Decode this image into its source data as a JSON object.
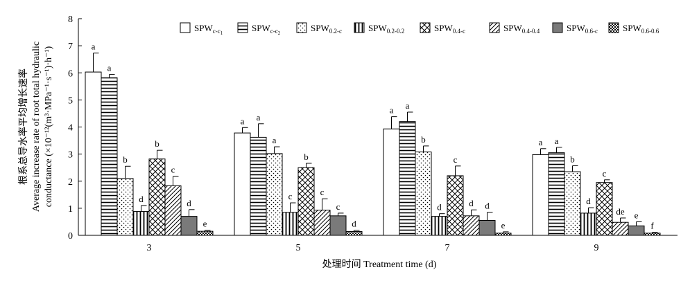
{
  "chart_data": {
    "type": "bar",
    "categories": [
      "3",
      "5",
      "7",
      "9"
    ],
    "xlabel": "处理时间 Treatment time (d)",
    "ylabel_lines": [
      "根系总导水率平均增长速率",
      "Average increase rate of root total hydraulic",
      "conductance (×10⁻¹²(m³·MPa⁻¹·s⁻¹)·h⁻¹)"
    ],
    "ylim": [
      0,
      8
    ],
    "yticks": [
      0,
      1,
      2,
      3,
      4,
      5,
      6,
      7,
      8
    ],
    "legend_position": "top-right",
    "series": [
      {
        "name": "SPW",
        "sub": "c-c",
        "subsub": "1",
        "pattern": "white",
        "values": [
          6.03,
          3.78,
          3.93,
          2.98
        ],
        "errors": [
          0.7,
          0.2,
          0.45,
          0.22
        ],
        "letters": [
          "a",
          "a",
          "a",
          "a"
        ]
      },
      {
        "name": "SPW",
        "sub": "c-c",
        "subsub": "2",
        "pattern": "hlines",
        "values": [
          5.82,
          3.62,
          4.2,
          3.05
        ],
        "errors": [
          0.12,
          0.5,
          0.35,
          0.2
        ],
        "letters": [
          "a",
          "a",
          "a",
          "a"
        ]
      },
      {
        "name": "SPW",
        "sub": "0.2-c",
        "subsub": "",
        "pattern": "dots",
        "values": [
          2.1,
          3.02,
          3.08,
          2.35
        ],
        "errors": [
          0.45,
          0.25,
          0.22,
          0.22
        ],
        "letters": [
          "b",
          "a",
          "b",
          "b"
        ]
      },
      {
        "name": "SPW",
        "sub": "0.2-0.2",
        "subsub": "",
        "pattern": "vlines",
        "values": [
          0.88,
          0.85,
          0.7,
          0.82
        ],
        "errors": [
          0.22,
          0.35,
          0.1,
          0.2
        ],
        "letters": [
          "d",
          "c",
          "d",
          "d"
        ]
      },
      {
        "name": "SPW",
        "sub": "0.4-c",
        "subsub": "",
        "pattern": "crosshatch",
        "values": [
          2.82,
          2.5,
          2.2,
          1.95
        ],
        "errors": [
          0.32,
          0.16,
          0.36,
          0.1
        ],
        "letters": [
          "b",
          "b",
          "c",
          "c"
        ]
      },
      {
        "name": "SPW",
        "sub": "0.4-0.4",
        "subsub": "",
        "pattern": "diag",
        "values": [
          1.83,
          0.93,
          0.72,
          0.48
        ],
        "errors": [
          0.35,
          0.42,
          0.22,
          0.16
        ],
        "letters": [
          "c",
          "c",
          "d",
          "de"
        ]
      },
      {
        "name": "SPW",
        "sub": "0.6-c",
        "subsub": "",
        "pattern": "gray",
        "values": [
          0.7,
          0.72,
          0.55,
          0.35
        ],
        "errors": [
          0.25,
          0.1,
          0.3,
          0.15
        ],
        "letters": [
          "d",
          "c",
          "d",
          "e"
        ]
      },
      {
        "name": "SPW",
        "sub": "0.6-0.6",
        "subsub": "",
        "pattern": "checker",
        "values": [
          0.15,
          0.14,
          0.08,
          0.08
        ],
        "errors": [
          0.04,
          0.05,
          0.05,
          0.03
        ],
        "letters": [
          "e",
          "d",
          "e",
          "f"
        ]
      }
    ]
  }
}
